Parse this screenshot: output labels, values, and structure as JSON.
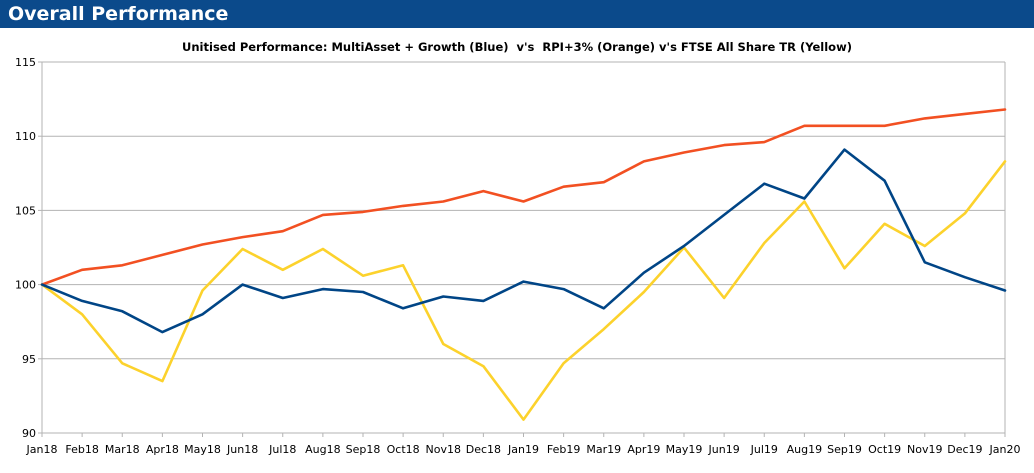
{
  "header": {
    "title": "Overall Performance",
    "background": "#0b4a8b"
  },
  "chart_data": {
    "type": "line",
    "title": "Unitised Performance: MultiAsset + Growth (Blue)  v's  RPI+3% (Orange) v's FTSE All Share TR (Yellow)",
    "xlabel": "",
    "ylabel": "",
    "ylim": [
      90,
      115
    ],
    "yticks": [
      90,
      95,
      100,
      105,
      110,
      115
    ],
    "grid": true,
    "categories": [
      "Jan18",
      "Feb18",
      "Mar18",
      "Apr18",
      "May18",
      "Jun18",
      "Jul18",
      "Aug18",
      "Sep18",
      "Oct18",
      "Nov18",
      "Dec18",
      "Jan19",
      "Feb19",
      "Mar19",
      "Apr19",
      "May19",
      "Jun19",
      "Jul19",
      "Aug19",
      "Sep19",
      "Oct19",
      "Nov19",
      "Dec19",
      "Jan20"
    ],
    "series": [
      {
        "color": "#f25022",
        "values": [
          100,
          101.0,
          101.3,
          102.0,
          102.7,
          103.2,
          103.6,
          104.7,
          104.9,
          105.3,
          105.6,
          106.3,
          105.6,
          106.6,
          106.9,
          108.3,
          108.9,
          109.4,
          109.6,
          110.7,
          110.7,
          110.7,
          111.2,
          111.5,
          111.8
        ]
      },
      {
        "color": "#fcd22c",
        "values": [
          100,
          98.0,
          94.7,
          93.5,
          99.6,
          102.4,
          101.0,
          102.4,
          100.6,
          101.3,
          96.0,
          94.5,
          90.9,
          94.7,
          97.0,
          99.5,
          102.5,
          99.1,
          102.8,
          105.6,
          101.1,
          104.1,
          102.6,
          104.8,
          108.3
        ]
      },
      {
        "color": "#004586",
        "values": [
          100,
          98.9,
          98.2,
          96.8,
          98.0,
          100.0,
          99.1,
          99.7,
          99.5,
          98.4,
          99.2,
          98.9,
          100.2,
          99.7,
          98.4,
          100.8,
          102.6,
          104.7,
          106.8,
          105.8,
          109.1,
          107.0,
          101.5,
          100.5,
          99.6
        ]
      }
    ]
  }
}
